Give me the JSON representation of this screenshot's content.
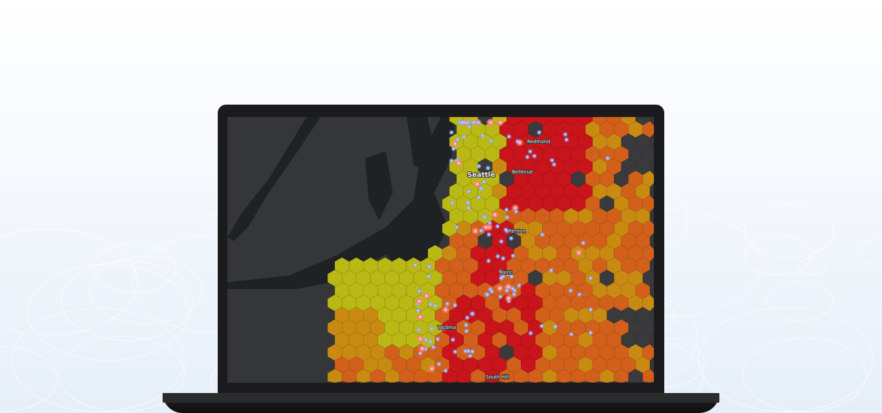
{
  "map": {
    "labels": {
      "seattle": "Seattle",
      "redmond": "Redmond",
      "bellevue": "Bellevue",
      "renton": "Renton",
      "kent": "Kent",
      "tacoma": "Tacoma",
      "south_hill": "South Hill"
    },
    "colors": {
      "land": "#353637",
      "water": "#1f2224",
      "low": "#b9b814",
      "mid": "#c98a12",
      "high": "#d2601a",
      "max": "#c8141a",
      "point": "#8fa8ff",
      "hot_point": "#ff8080"
    }
  }
}
